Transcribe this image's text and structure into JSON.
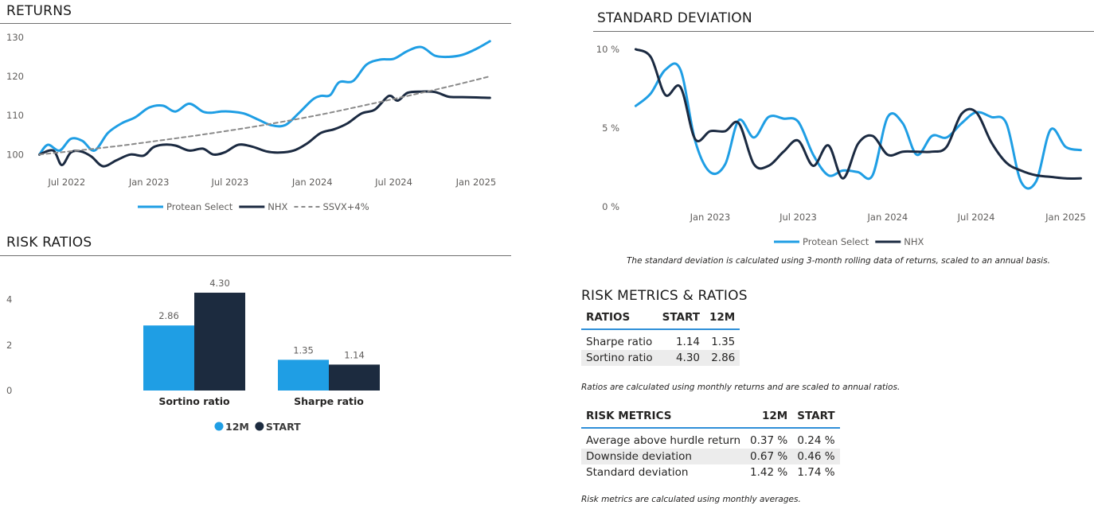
{
  "returns": {
    "title": "RETURNS",
    "legend": [
      "Protean Select",
      "NHX",
      "SSVX+4%"
    ]
  },
  "std_dev": {
    "title": "STANDARD DEVIATION",
    "legend": [
      "Protean Select",
      "NHX"
    ],
    "note": "The standard deviation is calculated using 3-month rolling data of returns, scaled to an annual basis."
  },
  "risk_ratios": {
    "title": "RISK RATIOS",
    "legend": [
      "12M",
      "START"
    ]
  },
  "metrics": {
    "title": "RISK METRICS & RATIOS",
    "ratios_table": {
      "headers": [
        "RATIOS",
        "START",
        "12M"
      ],
      "rows": [
        [
          "Sharpe ratio",
          "1.14",
          "1.35"
        ],
        [
          "Sortino ratio",
          "4.30",
          "2.86"
        ]
      ]
    },
    "ratios_note": "Ratios are calculated using monthly returns and are scaled to annual ratios.",
    "risk_table": {
      "headers": [
        "RISK METRICS",
        "12M",
        "START"
      ],
      "rows": [
        [
          "Average above hurdle return",
          "0.37 %",
          "0.24 %"
        ],
        [
          "Downside deviation",
          "0.67 %",
          "0.46 %"
        ],
        [
          "Standard deviation",
          "1.42 %",
          "1.74 %"
        ]
      ]
    },
    "risk_note": "Risk metrics are calculated using monthly averages."
  },
  "colors": {
    "protean": "#1f9ee4",
    "nhx": "#1b2a41",
    "ssvx": "#8a8a8a",
    "bar_12m": "#1f9ee4",
    "bar_start": "#1c2b3f",
    "table_accent": "#2f8fd8"
  },
  "chart_data": [
    {
      "id": "returns",
      "type": "line",
      "title": "RETURNS",
      "xlabel": "",
      "ylabel": "",
      "x_ticks": [
        "Jul 2022",
        "Jan 2023",
        "Jul 2023",
        "Jan 2024",
        "Jul 2024",
        "Jan 2025"
      ],
      "x_tick_dates": [
        "2022-07-01",
        "2023-01-01",
        "2023-07-01",
        "2024-01-01",
        "2024-07-01",
        "2025-01-01"
      ],
      "x_range": [
        "2022-04-23",
        "2025-02-20"
      ],
      "y_ticks": [
        100,
        110,
        120,
        130
      ],
      "ylim": [
        91.5,
        131
      ],
      "grid": false,
      "legend_position": "bottom",
      "series": [
        {
          "name": "Protean Select",
          "x": [
            "2022-05-01",
            "2022-05-20",
            "2022-06-15",
            "2022-07-10",
            "2022-08-05",
            "2022-09-01",
            "2022-10-01",
            "2022-11-01",
            "2022-12-01",
            "2023-01-01",
            "2023-02-01",
            "2023-03-01",
            "2023-04-01",
            "2023-05-01",
            "2023-05-20",
            "2023-06-10",
            "2023-07-01",
            "2023-08-01",
            "2023-09-01",
            "2023-10-01",
            "2023-11-01",
            "2023-12-01",
            "2024-01-01",
            "2024-01-20",
            "2024-02-10",
            "2024-03-01",
            "2024-04-01",
            "2024-05-01",
            "2024-06-01",
            "2024-07-01",
            "2024-08-01",
            "2024-09-01",
            "2024-10-01",
            "2024-11-01",
            "2024-12-01",
            "2025-01-01",
            "2025-02-01"
          ],
          "y": [
            100,
            102.5,
            101,
            104,
            103.5,
            101,
            105.5,
            108,
            109.5,
            112,
            112.5,
            111,
            113,
            111,
            110.7,
            111,
            111,
            110.5,
            109,
            107.5,
            107.5,
            110.5,
            114,
            115,
            115.2,
            118.5,
            118.8,
            123,
            124.3,
            124.5,
            126.5,
            127.5,
            125.3,
            125,
            125.5,
            127,
            129
          ]
        },
        {
          "name": "NHX",
          "x": [
            "2022-05-01",
            "2022-06-01",
            "2022-06-20",
            "2022-07-10",
            "2022-08-01",
            "2022-08-25",
            "2022-09-20",
            "2022-10-20",
            "2022-11-20",
            "2022-12-20",
            "2023-01-10",
            "2023-02-01",
            "2023-03-01",
            "2023-04-01",
            "2023-05-01",
            "2023-05-25",
            "2023-06-20",
            "2023-07-20",
            "2023-08-20",
            "2023-09-20",
            "2023-10-20",
            "2023-11-20",
            "2023-12-20",
            "2024-01-20",
            "2024-02-20",
            "2024-03-20",
            "2024-04-20",
            "2024-05-20",
            "2024-06-20",
            "2024-07-10",
            "2024-08-01",
            "2024-09-01",
            "2024-10-01",
            "2024-11-01",
            "2024-12-01",
            "2025-01-01",
            "2025-02-01"
          ],
          "y": [
            100,
            101,
            97.3,
            100.5,
            100.8,
            99.5,
            97,
            98.5,
            100,
            99.7,
            101.8,
            102.5,
            102.3,
            101,
            101.5,
            100,
            100.6,
            102.5,
            102,
            100.8,
            100.5,
            101,
            102.8,
            105.5,
            106.5,
            108,
            110.5,
            111.5,
            115,
            113.8,
            115.8,
            116.1,
            116,
            114.8,
            114.7,
            114.6,
            114.5
          ]
        },
        {
          "name": "SSVX+4%",
          "x": [
            "2022-05-01",
            "2022-08-01",
            "2022-11-01",
            "2023-02-01",
            "2023-05-01",
            "2023-08-01",
            "2023-11-01",
            "2024-02-01",
            "2024-05-01",
            "2024-08-01",
            "2024-11-01",
            "2025-02-01"
          ],
          "y": [
            100,
            101.1,
            102.3,
            103.7,
            105.1,
            106.7,
            108.5,
            110.5,
            112.7,
            115,
            117.4,
            120
          ]
        }
      ]
    },
    {
      "id": "std_dev",
      "type": "line",
      "title": "STANDARD DEVIATION",
      "xlabel": "",
      "ylabel": "",
      "x_ticks": [
        "Jan 2023",
        "Jul 2023",
        "Jan 2024",
        "Jul 2024",
        "Jan 2025"
      ],
      "x_tick_dates": [
        "2023-01-01",
        "2023-07-01",
        "2024-01-01",
        "2024-07-01",
        "2025-01-01"
      ],
      "x_range": [
        "2022-07-10",
        "2025-02-20"
      ],
      "y_ticks": [
        0,
        5,
        10
      ],
      "y_tick_labels": [
        "0 %",
        "5 %",
        "10 %"
      ],
      "ylim": [
        0,
        10.3
      ],
      "grid": false,
      "legend_position": "bottom",
      "series": [
        {
          "name": "Protean Select",
          "x": [
            "2022-08-01",
            "2022-09-01",
            "2022-10-01",
            "2022-11-01",
            "2022-12-01",
            "2023-01-01",
            "2023-02-01",
            "2023-03-01",
            "2023-04-01",
            "2023-05-01",
            "2023-06-01",
            "2023-07-01",
            "2023-08-01",
            "2023-09-01",
            "2023-10-01",
            "2023-11-01",
            "2023-12-01",
            "2024-01-01",
            "2024-02-01",
            "2024-03-01",
            "2024-04-01",
            "2024-05-01",
            "2024-06-01",
            "2024-07-01",
            "2024-08-01",
            "2024-09-01",
            "2024-10-01",
            "2024-11-01",
            "2024-12-01",
            "2025-01-01",
            "2025-02-01"
          ],
          "y": [
            6.4,
            7.2,
            8.7,
            8.7,
            4.2,
            2.2,
            2.7,
            5.5,
            4.4,
            5.7,
            5.6,
            5.4,
            3.3,
            2,
            2.3,
            2.2,
            2,
            5.7,
            5.3,
            3.3,
            4.5,
            4.4,
            5.3,
            6,
            5.7,
            5.3,
            1.6,
            1.6,
            4.9,
            3.8,
            3.6
          ]
        },
        {
          "name": "NHX",
          "x": [
            "2022-08-01",
            "2022-09-01",
            "2022-10-01",
            "2022-11-01",
            "2022-12-01",
            "2023-01-01",
            "2023-02-01",
            "2023-03-01",
            "2023-04-01",
            "2023-05-01",
            "2023-06-01",
            "2023-07-01",
            "2023-08-01",
            "2023-09-01",
            "2023-10-01",
            "2023-11-01",
            "2023-12-01",
            "2024-01-01",
            "2024-02-01",
            "2024-03-01",
            "2024-04-01",
            "2024-05-01",
            "2024-06-01",
            "2024-07-01",
            "2024-08-01",
            "2024-09-01",
            "2024-10-01",
            "2024-11-01",
            "2024-12-01",
            "2025-01-01",
            "2025-02-01"
          ],
          "y": [
            10,
            9.5,
            7.1,
            7.6,
            4.3,
            4.8,
            4.8,
            5.3,
            2.7,
            2.6,
            3.5,
            4.2,
            2.6,
            3.9,
            1.8,
            4,
            4.5,
            3.3,
            3.5,
            3.5,
            3.5,
            3.8,
            5.9,
            6,
            4.1,
            2.8,
            2.3,
            2,
            1.9,
            1.8,
            1.8
          ]
        }
      ]
    },
    {
      "id": "risk_ratios",
      "type": "bar",
      "title": "RISK RATIOS",
      "xlabel": "",
      "ylabel": "",
      "categories": [
        "Sortino ratio",
        "Sharpe ratio"
      ],
      "y_ticks": [
        0,
        2,
        4
      ],
      "ylim": [
        0,
        5
      ],
      "grid": false,
      "legend_position": "bottom",
      "series": [
        {
          "name": "12M",
          "values": [
            2.86,
            1.35
          ],
          "labels": [
            "2.86",
            "1.35"
          ]
        },
        {
          "name": "START",
          "values": [
            4.3,
            1.14
          ],
          "labels": [
            "4.30",
            "1.14"
          ]
        }
      ]
    }
  ]
}
